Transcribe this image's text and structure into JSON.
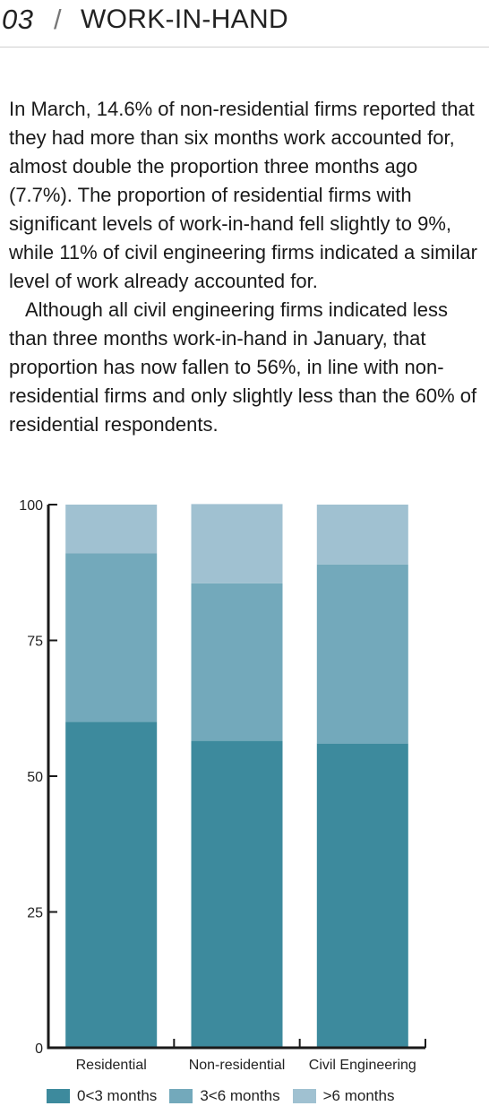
{
  "header": {
    "section_number": "03",
    "separator": "/",
    "title": "WORK-IN-HAND"
  },
  "body": {
    "paragraphs": [
      "In March, 14.6% of non-residential firms reported that they had more than six months work accounted for, almost double the proportion three months ago (7.7%). The proportion of residential firms with significant levels of work-in-hand fell slightly to 9%, while 11% of civil engineering firms indicated a similar level of work already accounted for.",
      "Although all civil engineering firms indicated less than three months work-in-hand in January, that proportion has now fallen to 56%, in line with non-residential firms and only slightly less than the 60% of residential respondents."
    ]
  },
  "chart_data": {
    "type": "bar",
    "stacked": true,
    "categories": [
      "Residential",
      "Non-residential",
      "Civil Engineering"
    ],
    "series": [
      {
        "name": "0<3 months",
        "values": [
          60,
          56.5,
          56
        ],
        "color": "#3d8a9d"
      },
      {
        "name": "3<6 months",
        "values": [
          31,
          29,
          33
        ],
        "color": "#73a9bb"
      },
      {
        "name": ">6 months",
        "values": [
          9,
          14.6,
          11
        ],
        "color": "#a0c1d1"
      }
    ],
    "ylim": [
      0,
      100
    ],
    "yticks": [
      0,
      25,
      50,
      75,
      100
    ],
    "grid": false,
    "legend_position": "bottom"
  }
}
